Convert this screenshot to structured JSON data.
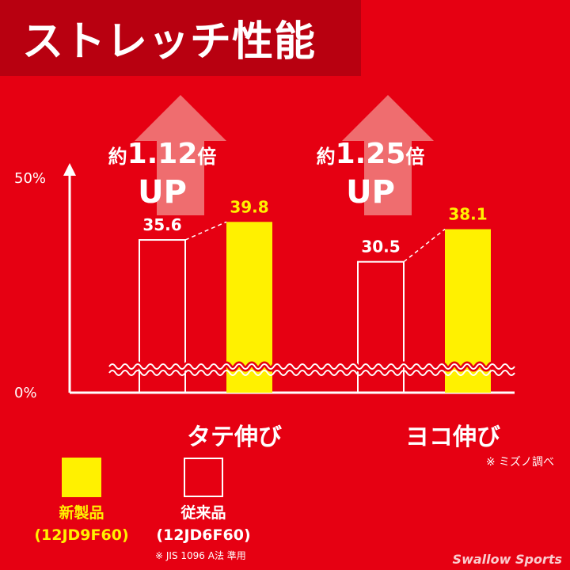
{
  "title": "ストレッチ性能",
  "chart_data": {
    "type": "bar",
    "y_ticks": [
      "50%",
      "0%"
    ],
    "ylim": [
      0,
      50
    ],
    "broken_axis": true,
    "categories": [
      "タテ伸び",
      "ヨコ伸び"
    ],
    "series": [
      {
        "name": "従来品",
        "values": [
          35.6,
          30.5
        ],
        "value_labels": [
          "35.6",
          "30.5"
        ],
        "style": "outline",
        "color": "#ffffff"
      },
      {
        "name": "新製品",
        "values": [
          39.8,
          38.1
        ],
        "value_labels": [
          "39.8",
          "38.1"
        ],
        "style": "filled",
        "color": "#fff100"
      }
    ],
    "annotations": [
      {
        "prefix": "約",
        "value": "1.12",
        "suffix": "倍",
        "line2": "UP"
      },
      {
        "prefix": "約",
        "value": "1.25",
        "suffix": "倍",
        "line2": "UP"
      }
    ]
  },
  "source_note": "※ ミズノ調べ",
  "legend": [
    {
      "label": "新製品",
      "code": "(12JD9F60)",
      "style": "filled",
      "color": "#fff100"
    },
    {
      "label": "従来品",
      "code": "(12JD6F60)",
      "style": "outline",
      "color": "#ffffff"
    }
  ],
  "standard_note": "※ JIS 1096 A法 準用",
  "watermark": "Swallow Sports",
  "colors": {
    "background": "#e60012",
    "title_bar": "#b80010",
    "accent": "#fff100",
    "arrow": "#f08080"
  }
}
